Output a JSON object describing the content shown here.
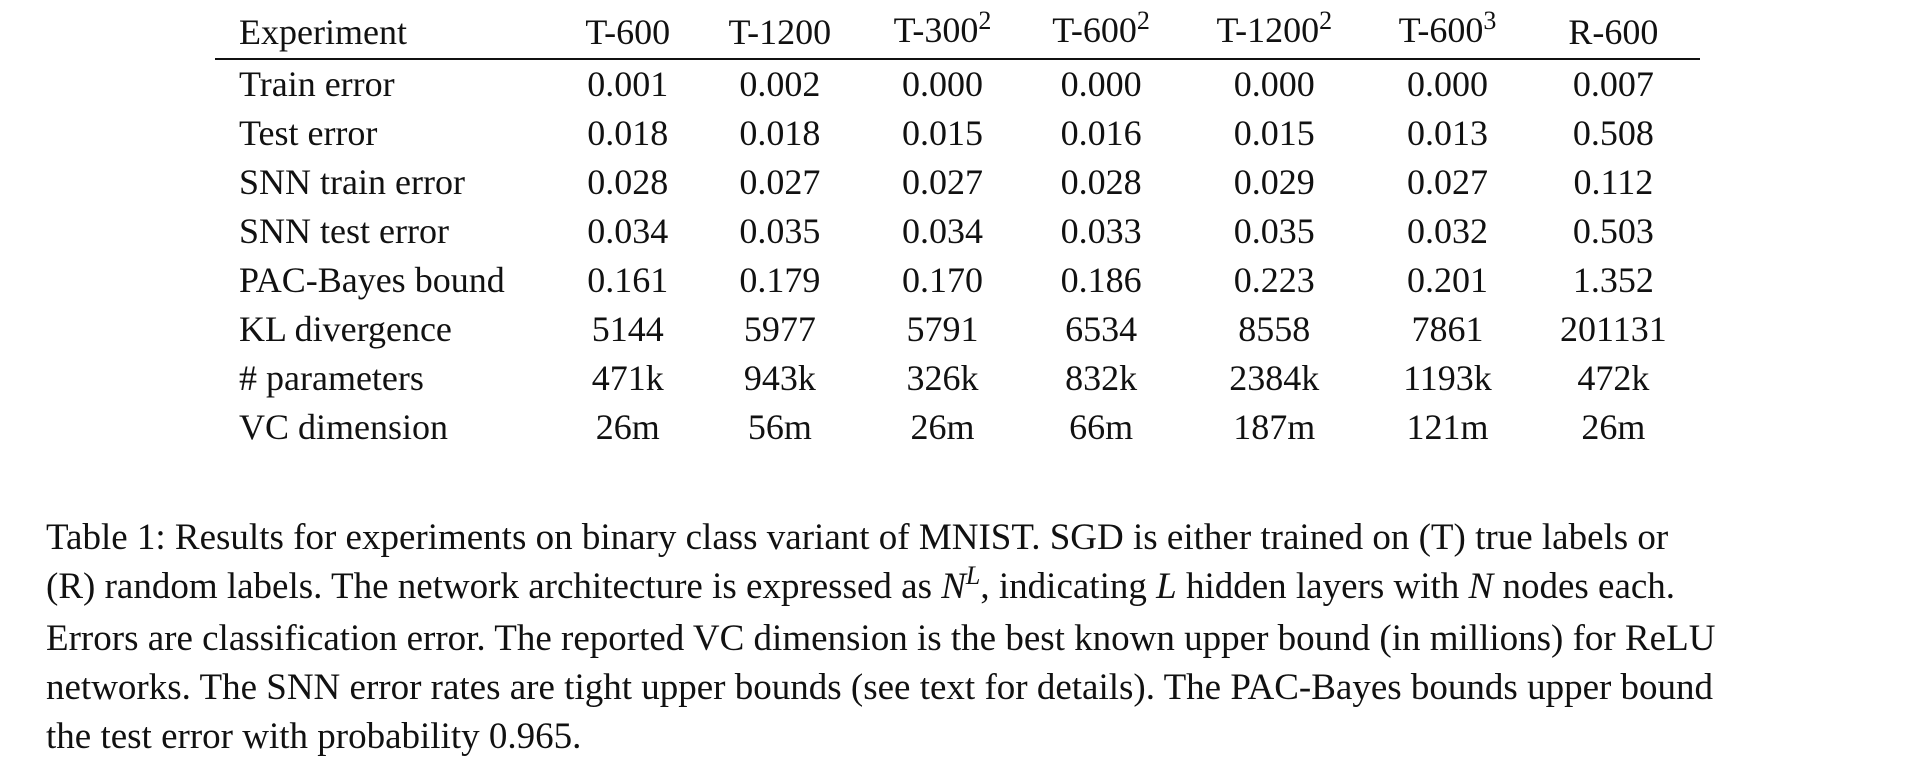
{
  "table": {
    "columns": [
      {
        "base": "Experiment",
        "exp": ""
      },
      {
        "base": "T-600",
        "exp": ""
      },
      {
        "base": "T-1200",
        "exp": ""
      },
      {
        "base": "T-300",
        "exp": "2"
      },
      {
        "base": "T-600",
        "exp": "2"
      },
      {
        "base": "T-1200",
        "exp": "2"
      },
      {
        "base": "T-600",
        "exp": "3"
      },
      {
        "base": "R-600",
        "exp": ""
      }
    ],
    "rows": [
      {
        "label": "Train error",
        "values": [
          "0.001",
          "0.002",
          "0.000",
          "0.000",
          "0.000",
          "0.000",
          "0.007"
        ]
      },
      {
        "label": "Test error",
        "values": [
          "0.018",
          "0.018",
          "0.015",
          "0.016",
          "0.015",
          "0.013",
          "0.508"
        ]
      },
      {
        "label": "SNN train error",
        "values": [
          "0.028",
          "0.027",
          "0.027",
          "0.028",
          "0.029",
          "0.027",
          "0.112"
        ]
      },
      {
        "label": "SNN test error",
        "values": [
          "0.034",
          "0.035",
          "0.034",
          "0.033",
          "0.035",
          "0.032",
          "0.503"
        ]
      },
      {
        "label": "PAC-Bayes bound",
        "values": [
          "0.161",
          "0.179",
          "0.170",
          "0.186",
          "0.223",
          "0.201",
          "1.352"
        ]
      },
      {
        "label": "KL divergence",
        "values": [
          "5144",
          "5977",
          "5791",
          "6534",
          "8558",
          "7861",
          "201131"
        ]
      },
      {
        "label": "# parameters",
        "values": [
          "471k",
          "943k",
          "326k",
          "832k",
          "2384k",
          "1193k",
          "472k"
        ]
      },
      {
        "label": "VC dimension",
        "values": [
          "26m",
          "56m",
          "26m",
          "66m",
          "187m",
          "121m",
          "26m"
        ]
      }
    ]
  },
  "caption": {
    "line1": "Table 1: Results for experiments on binary class variant of MNIST. SGD is either trained on (T) true labels or",
    "line2_a": "(R) random labels. The network architecture is expressed as ",
    "line2_N": "N",
    "line2_L": "L",
    "line2_b": ", indicating ",
    "line2_L2": "L",
    "line2_c": " hidden layers with ",
    "line2_N2": "N",
    "line2_d": " nodes each.",
    "line3": "Errors are classification error. The reported VC dimension is the best known upper bound (in millions) for ReLU",
    "line4": "networks. The SNN error rates are tight upper bounds (see text for details). The PAC-Bayes bounds upper bound",
    "line5": "the test error with probability 0.965."
  }
}
